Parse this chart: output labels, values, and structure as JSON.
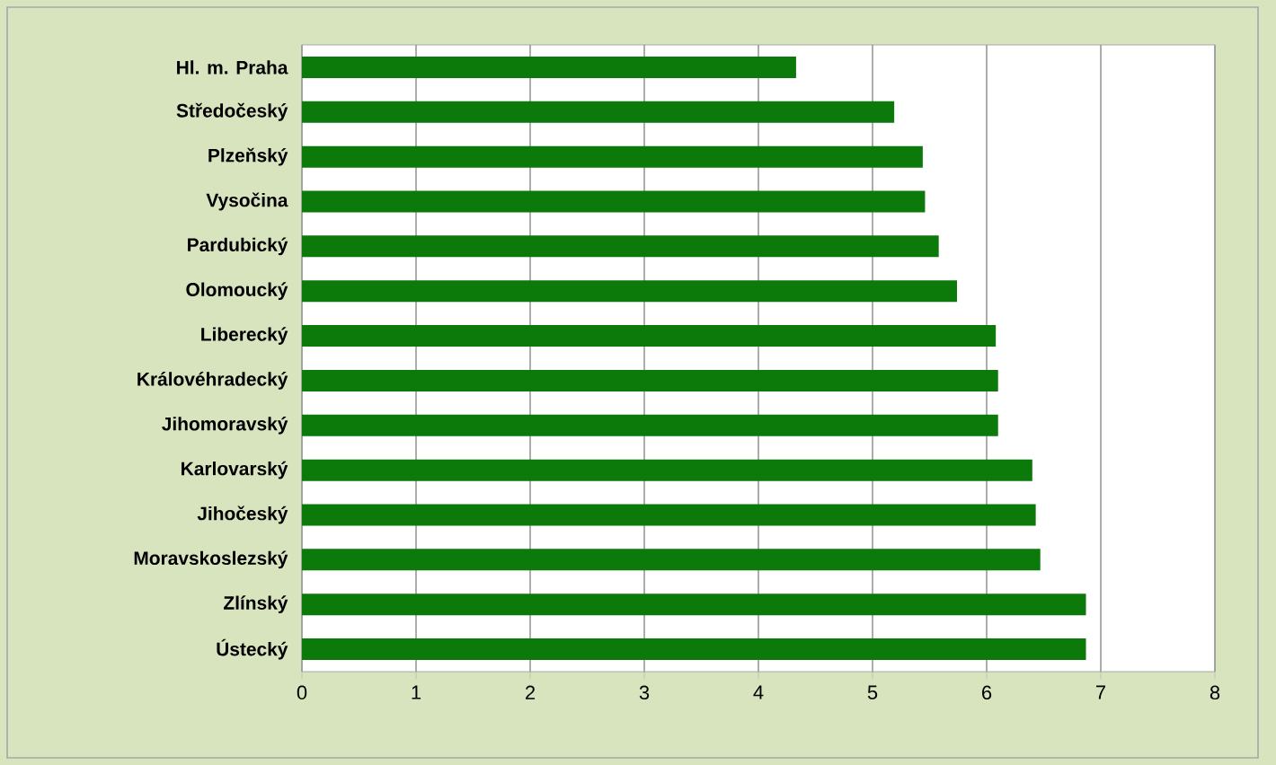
{
  "chart_data": {
    "type": "bar",
    "orientation": "horizontal",
    "categories": [
      "Hl. m. Praha",
      "Středočeský",
      "Plzeňský",
      "Vysočina",
      "Pardubický",
      "Olomoucký",
      "Liberecký",
      "Královéhradecký",
      "Jihomoravský",
      "Karlovarský",
      "Jihočeský",
      "Moravskoslezský",
      "Zlínský",
      "Ústecký"
    ],
    "values": [
      4.33,
      5.19,
      5.44,
      5.46,
      5.58,
      5.74,
      6.08,
      6.1,
      6.1,
      6.4,
      6.43,
      6.47,
      6.87,
      6.87
    ],
    "color": "#0b7a0b",
    "xlim": [
      0,
      8
    ],
    "xticks": [
      0,
      1,
      2,
      3,
      4,
      5,
      6,
      7,
      8
    ],
    "grid": "x"
  }
}
